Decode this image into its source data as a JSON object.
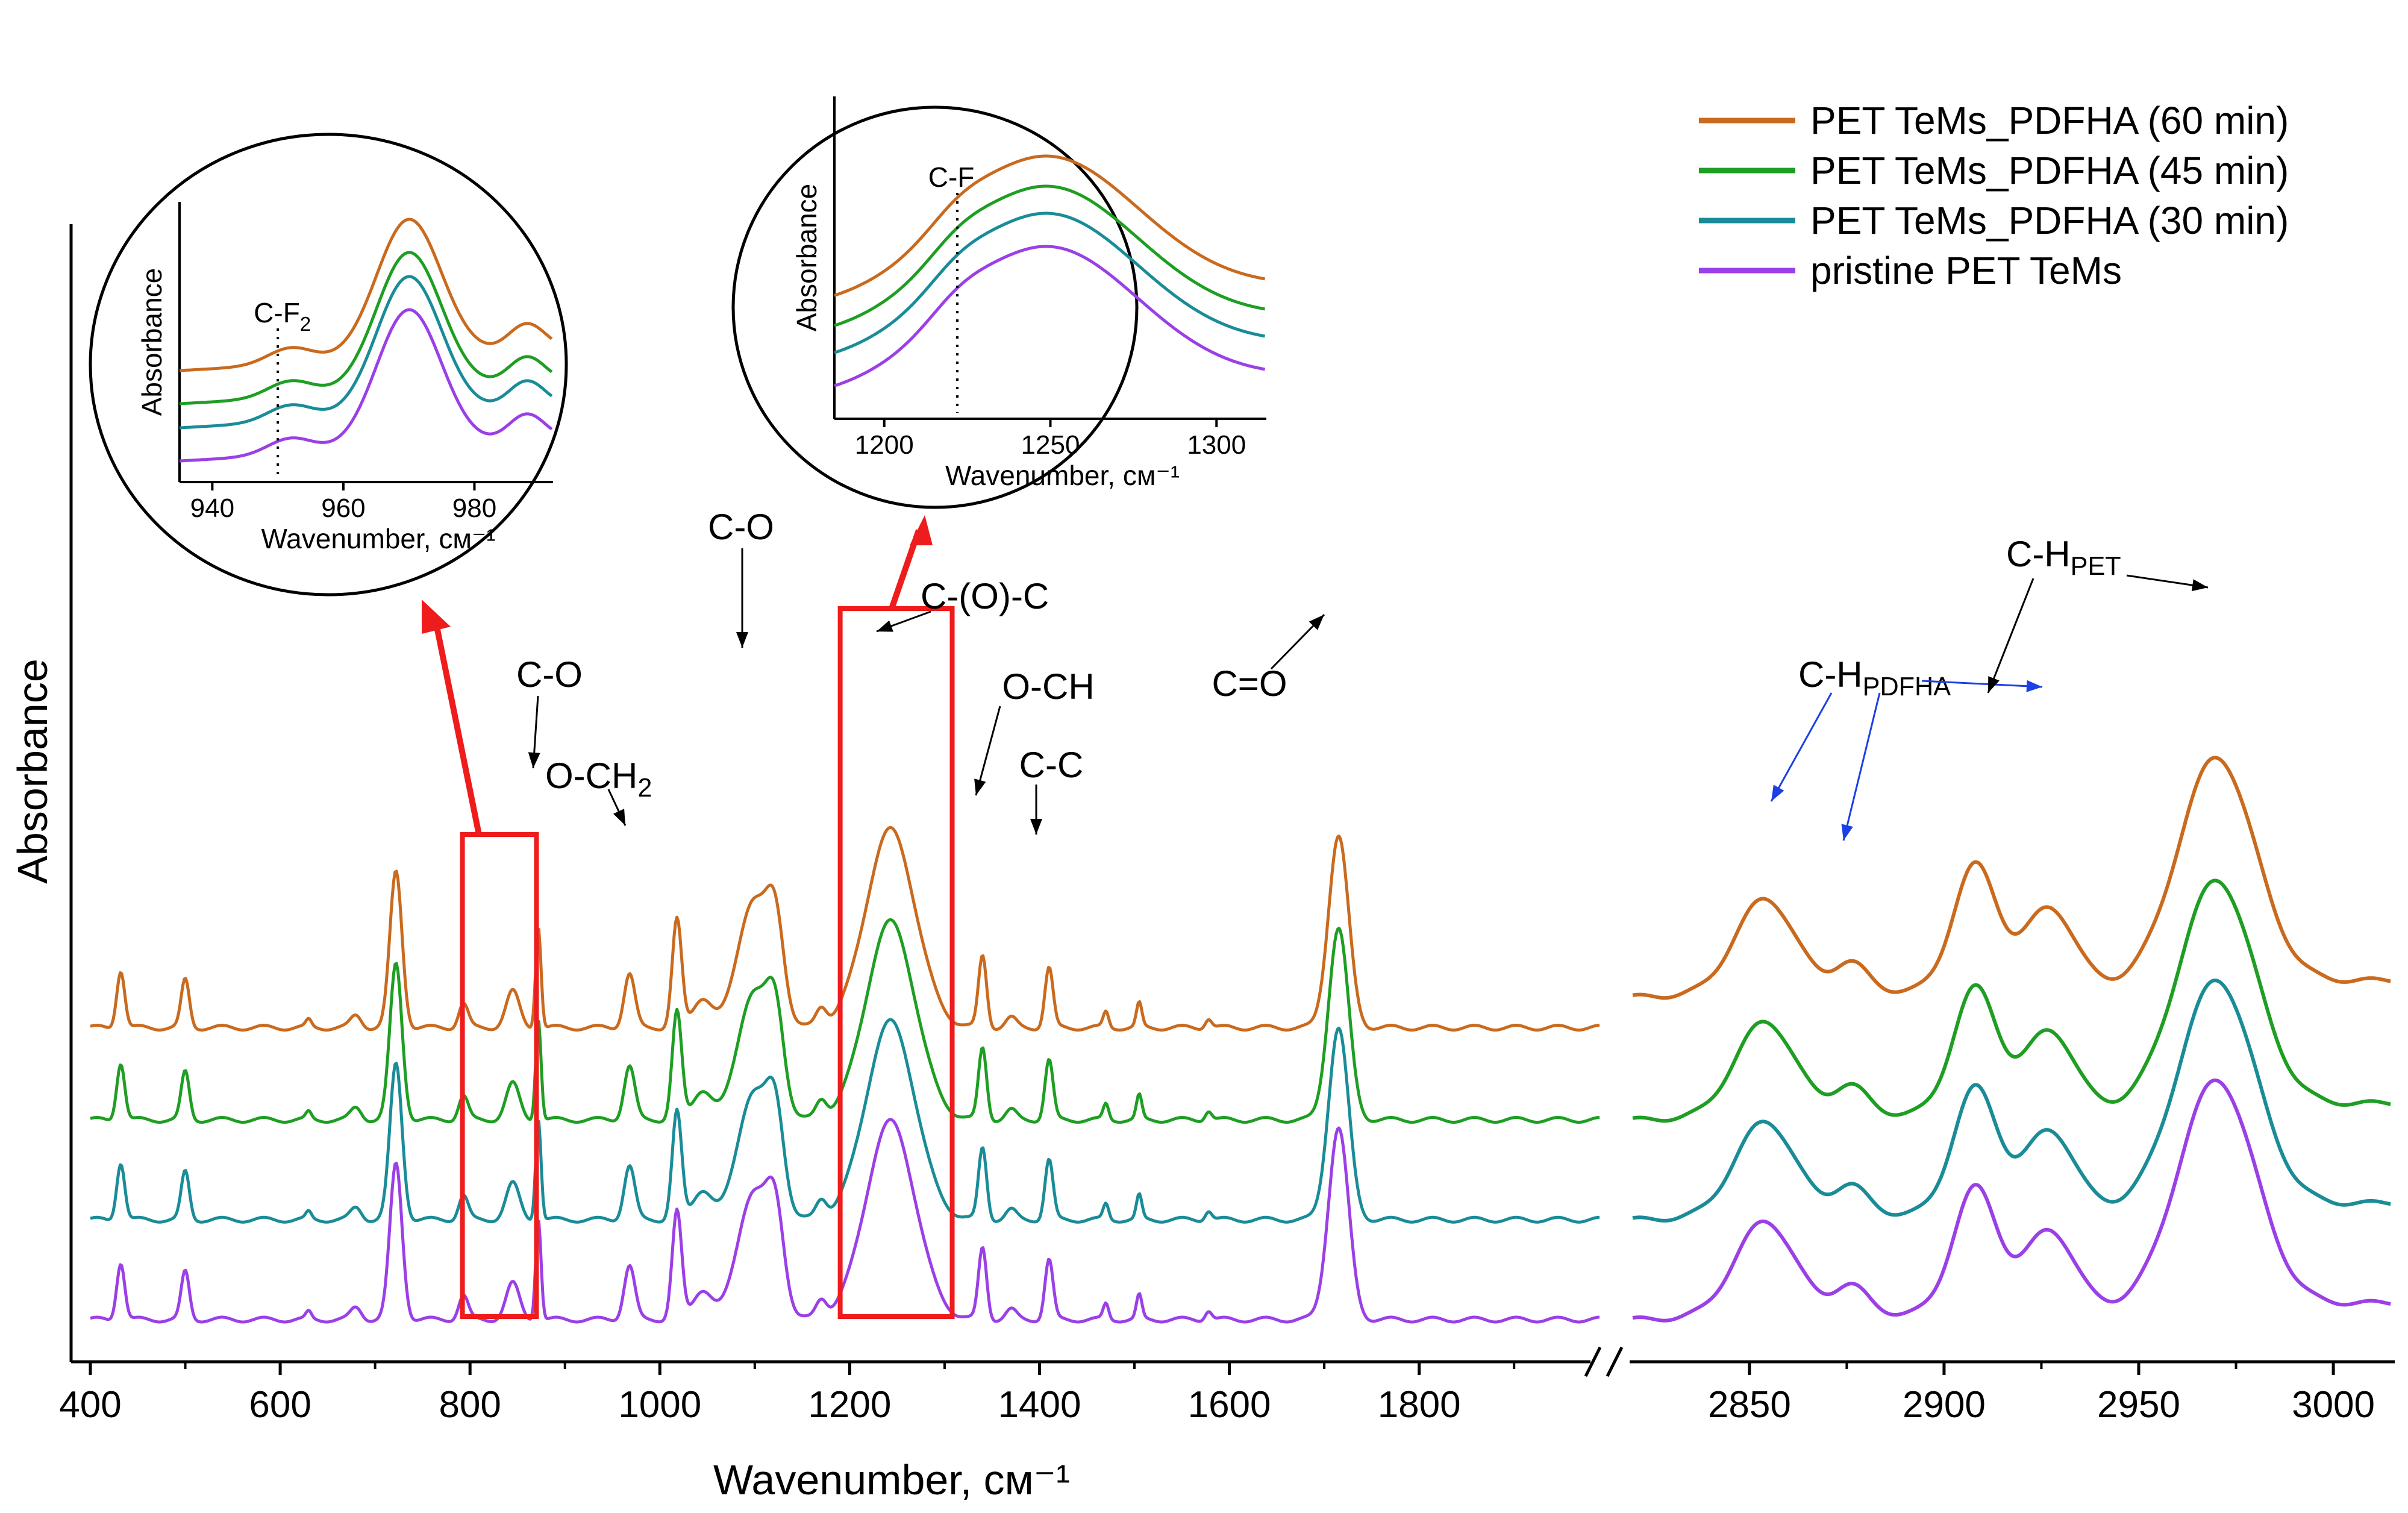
{
  "chart_data": {
    "type": "line",
    "xlabel": "Wavenumber, см⁻¹",
    "ylabel": "Absorbance",
    "axis_break": "//",
    "segments": [
      {
        "name": "low",
        "xlim": [
          400,
          1990
        ],
        "ticks": [
          "400",
          "600",
          "800",
          "1000",
          "1200",
          "1400",
          "1600",
          "1800"
        ]
      },
      {
        "name": "high",
        "xlim": [
          2820,
          3015
        ],
        "ticks": [
          "2850",
          "2900",
          "2950",
          "3000"
        ]
      }
    ],
    "colors": {
      "s60": "#c96a1e",
      "s45": "#1e9e23",
      "s30": "#1a8c98",
      "s0": "#9b3fe6",
      "highlight": "#ee1c1c",
      "pointer_blue": "#1c3fe6"
    },
    "series": [
      {
        "name": "PET TeMs_PDFHA (60 min)",
        "key": "s60",
        "offset": 2.1,
        "low_shift": 0.2
      },
      {
        "name": "PET TeMs_PDFHA (45 min)",
        "key": "s45",
        "offset": 1.3,
        "low_shift": 0.0
      },
      {
        "name": "PET TeMs_PDFHA (30 min)",
        "key": "s30",
        "offset": 0.65,
        "low_shift": 0.0
      },
      {
        "name": "pristine PET TeMs",
        "key": "s0",
        "offset": 0.0,
        "low_shift": 0.0
      }
    ],
    "peaks_low": [
      [
        432,
        0.48,
        6
      ],
      [
        500,
        0.4,
        6
      ],
      [
        630,
        0.06,
        4
      ],
      [
        680,
        0.1,
        8
      ],
      [
        722,
        1.3,
        9
      ],
      [
        793,
        0.2,
        7
      ],
      [
        845,
        0.3,
        10
      ],
      [
        872,
        0.85,
        4
      ],
      [
        968,
        0.45,
        8
      ],
      [
        1018,
        0.9,
        7
      ],
      [
        1045,
        0.25,
        14
      ],
      [
        1098,
        1.05,
        23
      ],
      [
        1122,
        0.75,
        13
      ],
      [
        1170,
        0.15,
        8
      ],
      [
        1243,
        1.65,
        37
      ],
      [
        1340,
        0.6,
        6
      ],
      [
        1370,
        0.08,
        8
      ],
      [
        1410,
        0.5,
        6
      ],
      [
        1470,
        0.13,
        4
      ],
      [
        1505,
        0.2,
        4
      ],
      [
        1578,
        0.08,
        5
      ],
      [
        1715,
        1.6,
        15
      ]
    ],
    "peaks_high": [
      [
        2854,
        0.65,
        11
      ],
      [
        2876,
        0.2,
        6
      ],
      [
        2908,
        0.85,
        8
      ],
      [
        2927,
        0.55,
        9
      ],
      [
        2970,
        1.55,
        14
      ]
    ],
    "legend": {
      "entries": [
        "PET TeMs_PDFHA (60 min)",
        "PET TeMs_PDFHA (45 min)",
        "PET TeMs_PDFHA (30 min)",
        "pristine PET TeMs"
      ]
    },
    "annotations": {
      "co_a": "C-O",
      "och2": "O-CH",
      "och2_sub": "2",
      "co_b": "C-O",
      "coc": "C-(O)-C",
      "och": "O-CH",
      "cc": "C-C",
      "c_o_double": "C=O",
      "ch_pdfha": "C-H",
      "ch_pdfha_sub": "PDFHA",
      "ch_pet": "C-H",
      "ch_pet_sub": "PET"
    },
    "inset_left": {
      "xlabel": "Wavenumber, см⁻¹",
      "ylabel": "Absorbance",
      "xlim": [
        935,
        992
      ],
      "ticks": [
        "940",
        "960",
        "980"
      ],
      "marker_label": "C-F",
      "marker_sub": "2",
      "marker_x": 950
    },
    "inset_right": {
      "xlabel": "Wavenumber, см⁻¹",
      "ylabel": "Absorbance",
      "xlim": [
        1185,
        1315
      ],
      "ticks": [
        "1200",
        "1250",
        "1300"
      ],
      "marker_label": "C-F",
      "marker_x": 1222
    }
  }
}
